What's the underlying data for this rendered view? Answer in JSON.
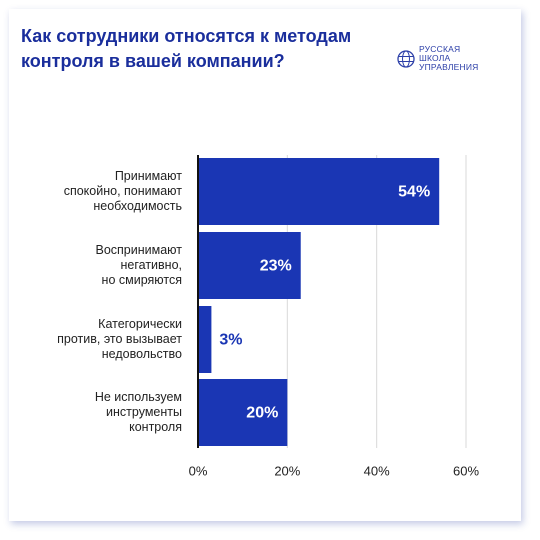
{
  "header": {
    "title": "Как сотрудники относятся к методам контроля в вашей компании?"
  },
  "logo": {
    "lines": [
      "РУССКАЯ",
      "ШКОЛА",
      "УПРАВЛЕНИЯ"
    ]
  },
  "colors": {
    "bar": "#1a36b4",
    "title": "#1a2e9c",
    "grid": "#d9d9d9",
    "text": "#222222"
  },
  "chart_data": {
    "type": "bar",
    "orientation": "horizontal",
    "categories": [
      "Принимают спокойно, понимают необходимость",
      "Воспринимают негативно, но смиряются",
      "Категорически против, это вызывает недовольство",
      "Не используем инструменты контроля"
    ],
    "category_lines": [
      [
        "Принимают",
        "спокойно, понимают",
        "необходимость"
      ],
      [
        "Воспринимают",
        "негативно,",
        "но смиряются"
      ],
      [
        "Категорически",
        "против, это вызывает",
        "недовольство"
      ],
      [
        "Не используем",
        "инструменты",
        "контроля"
      ]
    ],
    "values": [
      54,
      23,
      3,
      20
    ],
    "data_labels": [
      "54%",
      "23%",
      "3%",
      "20%"
    ],
    "xlim": [
      0,
      60
    ],
    "x_ticks": [
      0,
      20,
      40,
      60
    ],
    "x_tick_labels": [
      "0%",
      "20%",
      "40%",
      "60%"
    ],
    "grid": true
  }
}
